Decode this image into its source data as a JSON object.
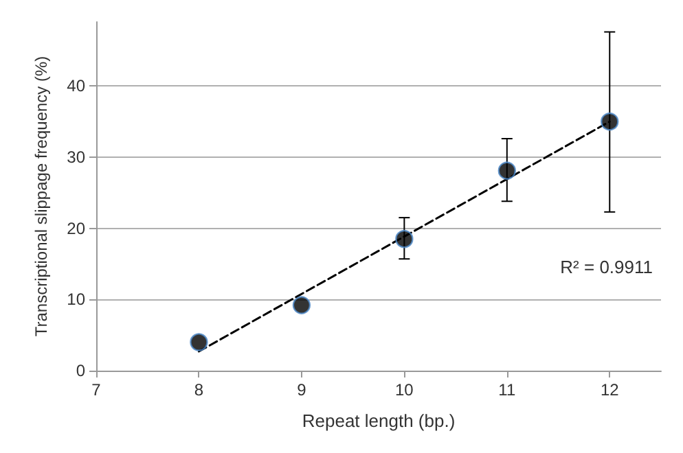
{
  "chart_data": {
    "type": "scatter",
    "xlabel": "Repeat length (bp.)",
    "ylabel": "Transcriptional slippage frequency (%)",
    "xlim": [
      7,
      12.5
    ],
    "xticks": [
      7,
      8,
      9,
      10,
      11,
      12
    ],
    "ylim": [
      0,
      49
    ],
    "yticks": [
      0,
      10,
      20,
      30,
      40
    ],
    "grid": "y",
    "annotations": [
      "R² = 0.9911"
    ],
    "series": [
      {
        "color": "#000000",
        "marker": "circle",
        "x": [
          8,
          9,
          10,
          11,
          12
        ],
        "values": [
          4.0,
          9.2,
          18.5,
          28.1,
          35.0
        ],
        "errors": [
          null,
          null,
          [
            15.7,
            21.5
          ],
          [
            23.8,
            32.6
          ],
          [
            22.3,
            47.6
          ]
        ]
      },
      {
        "type": "line",
        "color": "#000000",
        "marker": "none",
        "line_style": "dashed",
        "x": [
          8,
          12
        ],
        "values": [
          2.7,
          35.0
        ]
      }
    ]
  }
}
